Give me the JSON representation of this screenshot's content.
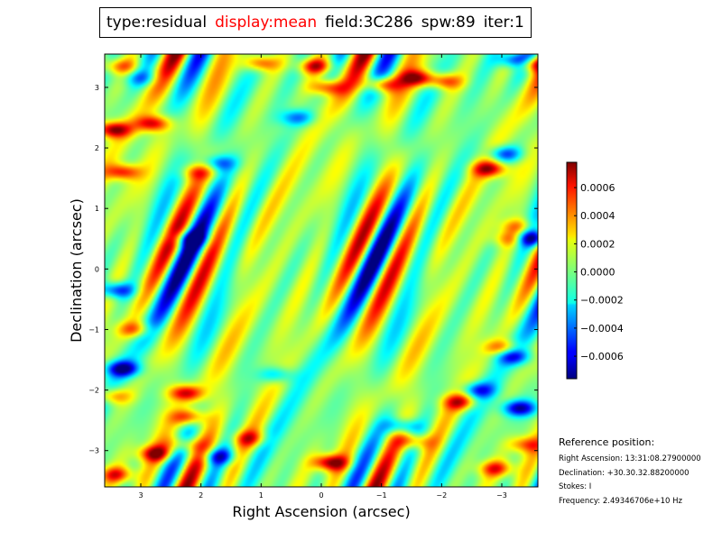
{
  "title_parts": [
    "type:residual",
    "display:mean",
    "field:3C286",
    "spw:89",
    "iter:1"
  ],
  "title_highlight_color": "#ff0000",
  "chart_data": {
    "type": "heatmap",
    "xlabel": "Right Ascension (arcsec)",
    "ylabel": "Declination (arcsec)",
    "xlim": [
      3.6,
      -3.6
    ],
    "ylim": [
      -3.6,
      3.55
    ],
    "x_ticks": [
      3,
      2,
      1,
      0,
      -1,
      -2,
      -3
    ],
    "x_tick_labels": [
      "3",
      "2",
      "1",
      "0",
      "−1",
      "−2",
      "−3"
    ],
    "y_ticks": [
      3,
      2,
      1,
      0,
      -1,
      -2,
      -3
    ],
    "y_tick_labels": [
      "3",
      "2",
      "1",
      "0",
      "−1",
      "−2",
      "−3"
    ],
    "colormap": "jet",
    "colorbar": {
      "vmin": -0.00076,
      "vmax": 0.00078,
      "ticks": [
        0.0006,
        0.0004,
        0.0002,
        0.0,
        -0.0002,
        -0.0004,
        -0.0006
      ],
      "tick_labels": [
        "0.0006",
        "0.0004",
        "0.0002",
        "0.0000",
        "−0.0002",
        "−0.0004",
        "−0.0006"
      ]
    },
    "features": [
      {
        "x": 3.45,
        "y": 2.3,
        "v": 0.00072
      },
      {
        "x": 2.8,
        "y": 2.4,
        "v": 0.0006
      },
      {
        "x": 3.3,
        "y": 1.6,
        "v": 0.00055
      },
      {
        "x": 3.35,
        "y": 3.35,
        "v": 0.0004
      },
      {
        "x": 1.0,
        "y": 3.4,
        "v": 0.0005
      },
      {
        "x": 0.1,
        "y": 3.35,
        "v": 0.0006
      },
      {
        "x": -0.1,
        "y": 3.0,
        "v": 0.0005
      },
      {
        "x": -1.0,
        "y": 3.05,
        "v": 0.0006
      },
      {
        "x": -1.6,
        "y": 3.15,
        "v": 0.0006
      },
      {
        "x": -2.05,
        "y": 3.1,
        "v": 0.0005
      },
      {
        "x": -3.5,
        "y": 3.4,
        "v": 0.0007
      },
      {
        "x": -3.25,
        "y": 3.45,
        "v": -0.0007
      },
      {
        "x": -2.8,
        "y": 1.65,
        "v": 0.0006
      },
      {
        "x": -3.05,
        "y": 1.9,
        "v": -0.0005
      },
      {
        "x": -3.15,
        "y": 0.5,
        "v": 0.0004
      },
      {
        "x": -3.5,
        "y": 0.5,
        "v": -0.0007
      },
      {
        "x": -3.25,
        "y": 0.7,
        "v": 0.00035
      },
      {
        "x": 1.7,
        "y": 1.75,
        "v": -0.0004
      },
      {
        "x": 2.05,
        "y": 1.6,
        "v": 0.00035
      },
      {
        "x": 3.4,
        "y": -0.35,
        "v": -0.0006
      },
      {
        "x": 3.3,
        "y": -1.65,
        "v": -0.0007
      },
      {
        "x": 2.25,
        "y": -2.05,
        "v": 0.0006
      },
      {
        "x": 2.2,
        "y": -2.45,
        "v": 0.0005
      },
      {
        "x": 3.45,
        "y": -2.1,
        "v": 0.0004
      },
      {
        "x": 2.75,
        "y": -3.05,
        "v": 0.0006
      },
      {
        "x": 2.3,
        "y": -2.9,
        "v": 0.0004
      },
      {
        "x": 3.4,
        "y": -3.4,
        "v": 0.0005
      },
      {
        "x": 1.7,
        "y": -3.1,
        "v": -0.0005
      },
      {
        "x": -0.15,
        "y": -3.2,
        "v": 0.0007
      },
      {
        "x": 1.2,
        "y": -2.8,
        "v": 0.0004
      },
      {
        "x": -1.35,
        "y": -2.6,
        "v": -0.00045
      },
      {
        "x": -2.3,
        "y": -2.2,
        "v": 0.0005
      },
      {
        "x": -2.6,
        "y": -2.0,
        "v": -0.0005
      },
      {
        "x": -3.3,
        "y": -2.3,
        "v": -0.0007
      },
      {
        "x": -3.0,
        "y": -1.3,
        "v": 0.0004
      },
      {
        "x": -3.2,
        "y": -1.45,
        "v": -0.0005
      },
      {
        "x": -2.9,
        "y": -3.3,
        "v": 0.0005
      },
      {
        "x": -1.55,
        "y": -2.85,
        "v": 0.0004
      },
      {
        "x": -3.4,
        "y": -2.9,
        "v": 0.0004
      },
      {
        "x": 3.0,
        "y": 3.15,
        "v": -0.0003
      },
      {
        "x": 0.4,
        "y": 2.5,
        "v": -0.0004
      },
      {
        "x": 2.2,
        "y": 0.5,
        "v": -0.0004
      },
      {
        "x": 0.75,
        "y": -1.75,
        "v": -0.00035
      },
      {
        "x": 3.1,
        "y": -1.0,
        "v": 0.0004
      }
    ]
  },
  "reference": {
    "title": "Reference position:",
    "lines": [
      "Right Ascension: 13:31:08.27900000",
      "Declination: +30.30.32.88200000",
      "Stokes: I",
      "Frequency: 2.49346706e+10 Hz"
    ]
  }
}
